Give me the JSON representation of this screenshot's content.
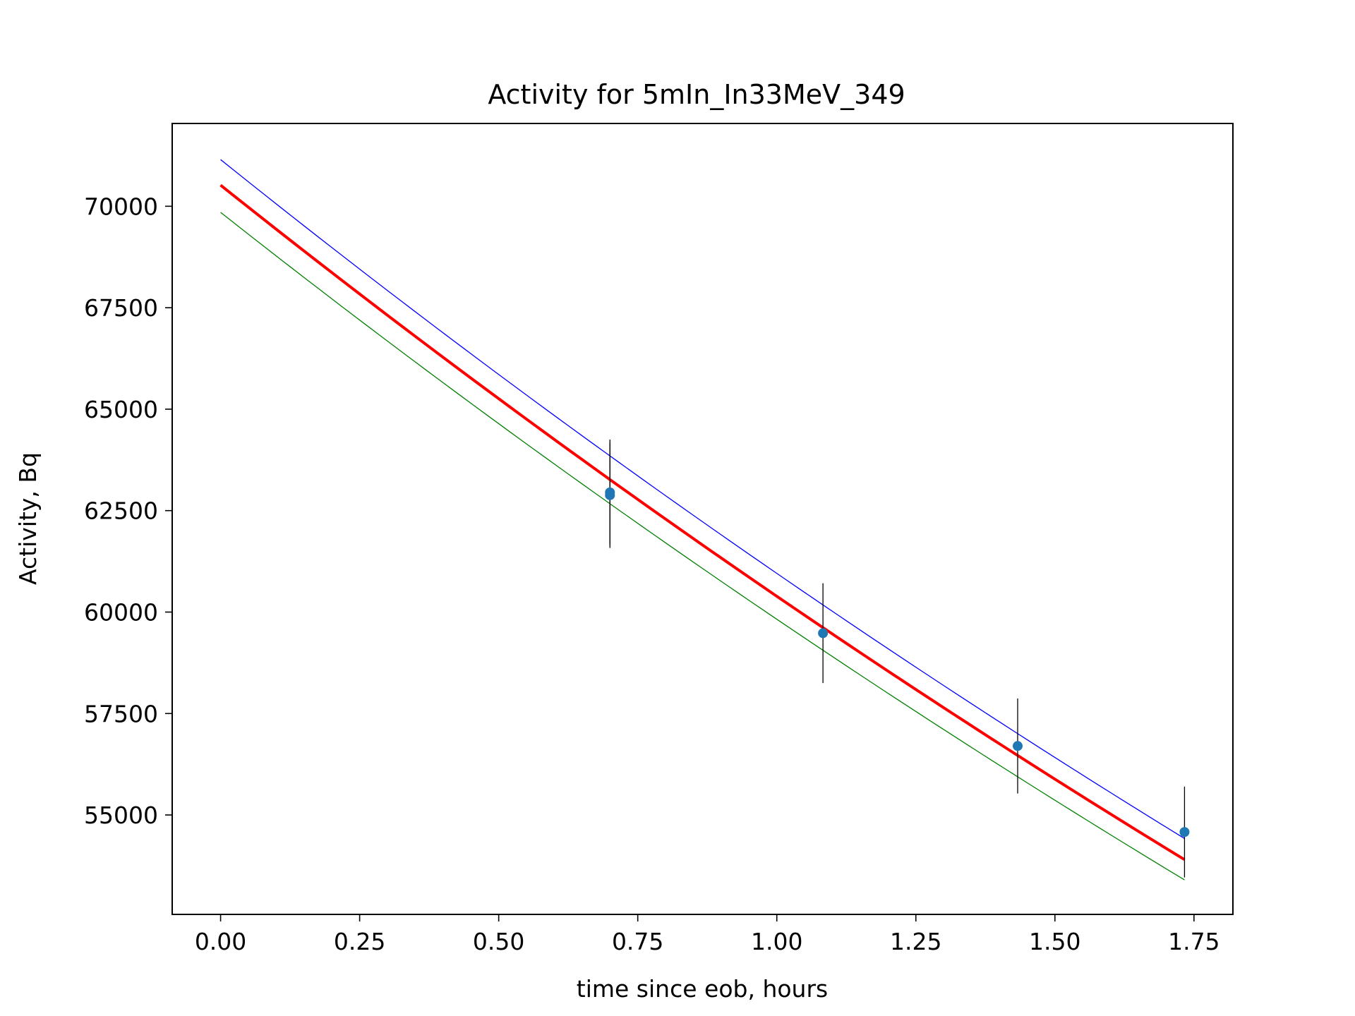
{
  "chart_data": {
    "type": "scatter",
    "title": "Activity for 5mIn_In33MeV_349",
    "xlabel": "time since eob, hours",
    "ylabel": "Activity, Bq",
    "xlim": [
      -0.087,
      1.82
    ],
    "ylim": [
      52550,
      72040
    ],
    "grid": false,
    "x_ticks": [
      0.0,
      0.25,
      0.5,
      0.75,
      1.0,
      1.25,
      1.5,
      1.75
    ],
    "x_tick_labels": [
      "0.00",
      "0.25",
      "0.50",
      "0.75",
      "1.00",
      "1.25",
      "1.50",
      "1.75"
    ],
    "y_ticks": [
      55000,
      57500,
      60000,
      62500,
      65000,
      67500,
      70000
    ],
    "y_tick_labels": [
      "55000",
      "57500",
      "60000",
      "62500",
      "65000",
      "67500",
      "70000"
    ],
    "measurements": {
      "color": "#1f77b4",
      "errorbar_color": "#000000",
      "points": [
        {
          "x": 0.7,
          "y": 62950,
          "yerr": 1300
        },
        {
          "x": 0.7,
          "y": 62880,
          "yerr": 1300
        },
        {
          "x": 1.083,
          "y": 59480,
          "yerr": 1230
        },
        {
          "x": 1.433,
          "y": 56700,
          "yerr": 1170
        },
        {
          "x": 1.733,
          "y": 54580,
          "yerr": 1120
        }
      ]
    },
    "series": [
      {
        "color": "#ff0000",
        "x0": 0.0,
        "y0": 70520,
        "x1": 1.733,
        "y1": 53900
      },
      {
        "color": "#0000ff",
        "x0": 0.0,
        "y0": 71150,
        "x1": 1.733,
        "y1": 54420
      },
      {
        "color": "#008000",
        "x0": 0.0,
        "y0": 69850,
        "x1": 1.733,
        "y1": 53400
      }
    ]
  }
}
